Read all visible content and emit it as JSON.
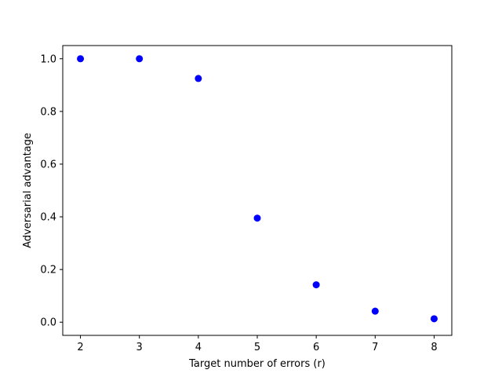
{
  "chart_data": {
    "type": "scatter",
    "title": "",
    "xlabel": "Target number of errors (r)",
    "ylabel": "Adversarial advantage",
    "xlim": [
      1.7,
      8.3
    ],
    "ylim": [
      -0.05,
      1.05
    ],
    "xticks": [
      2,
      3,
      4,
      5,
      6,
      7,
      8
    ],
    "yticks": [
      0.0,
      0.2,
      0.4,
      0.6,
      0.8,
      1.0
    ],
    "ytick_labels": [
      "0.0",
      "0.2",
      "0.4",
      "0.6",
      "0.8",
      "1.0"
    ],
    "grid": false,
    "legend": "none",
    "series": [
      {
        "color": "#0000ff",
        "x": [
          2,
          3,
          4,
          5,
          6,
          7,
          8
        ],
        "y": [
          1.0,
          1.0,
          0.925,
          0.395,
          0.142,
          0.042,
          0.013
        ]
      }
    ]
  }
}
